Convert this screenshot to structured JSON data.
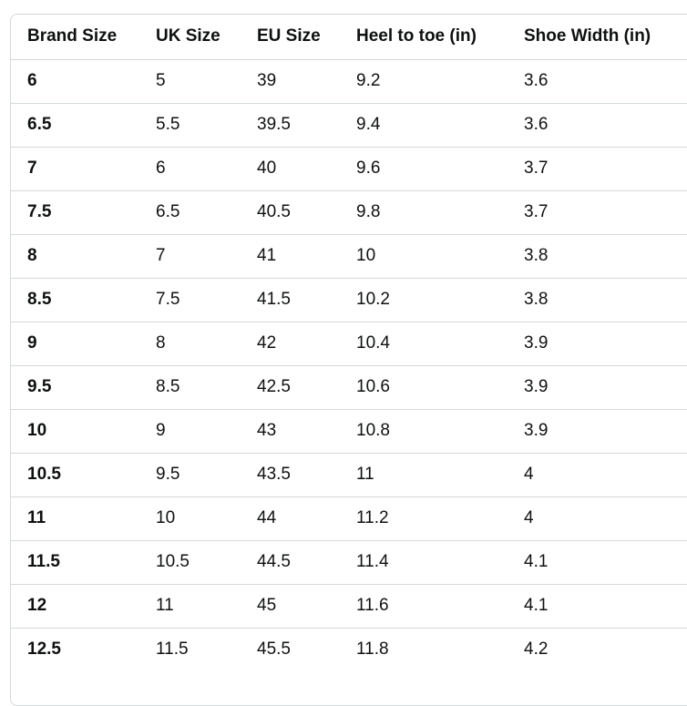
{
  "table": {
    "headers": [
      "Brand Size",
      "UK Size",
      "EU Size",
      "Heel to toe (in)",
      "Shoe Width (in)"
    ],
    "rows": [
      [
        "6",
        "5",
        "39",
        "9.2",
        "3.6"
      ],
      [
        "6.5",
        "5.5",
        "39.5",
        "9.4",
        "3.6"
      ],
      [
        "7",
        "6",
        "40",
        "9.6",
        "3.7"
      ],
      [
        "7.5",
        "6.5",
        "40.5",
        "9.8",
        "3.7"
      ],
      [
        "8",
        "7",
        "41",
        "10",
        "3.8"
      ],
      [
        "8.5",
        "7.5",
        "41.5",
        "10.2",
        "3.8"
      ],
      [
        "9",
        "8",
        "42",
        "10.4",
        "3.9"
      ],
      [
        "9.5",
        "8.5",
        "42.5",
        "10.6",
        "3.9"
      ],
      [
        "10",
        "9",
        "43",
        "10.8",
        "3.9"
      ],
      [
        "10.5",
        "9.5",
        "43.5",
        "11",
        "4"
      ],
      [
        "11",
        "10",
        "44",
        "11.2",
        "4"
      ],
      [
        "11.5",
        "10.5",
        "44.5",
        "11.4",
        "4.1"
      ],
      [
        "12",
        "11",
        "45",
        "11.6",
        "4.1"
      ],
      [
        "12.5",
        "11.5",
        "45.5",
        "11.8",
        "4.2"
      ]
    ]
  }
}
